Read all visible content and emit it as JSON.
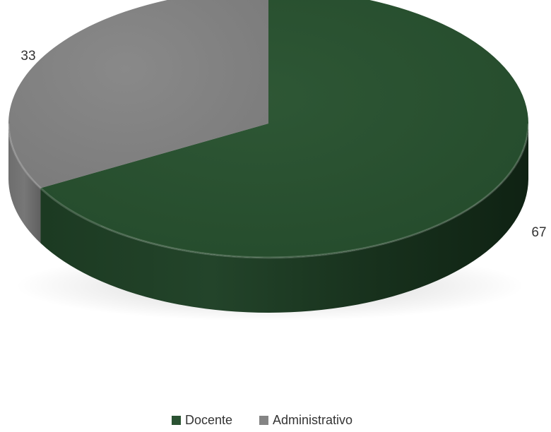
{
  "chart_data": {
    "type": "pie",
    "style": "3d",
    "categories": [
      "Docente",
      "Administrativo"
    ],
    "values": [
      67,
      33
    ],
    "data_labels": [
      "67",
      "33"
    ],
    "colors": {
      "Docente": "#2a5232",
      "Administrativo": "#848484"
    },
    "legend_position": "bottom"
  }
}
